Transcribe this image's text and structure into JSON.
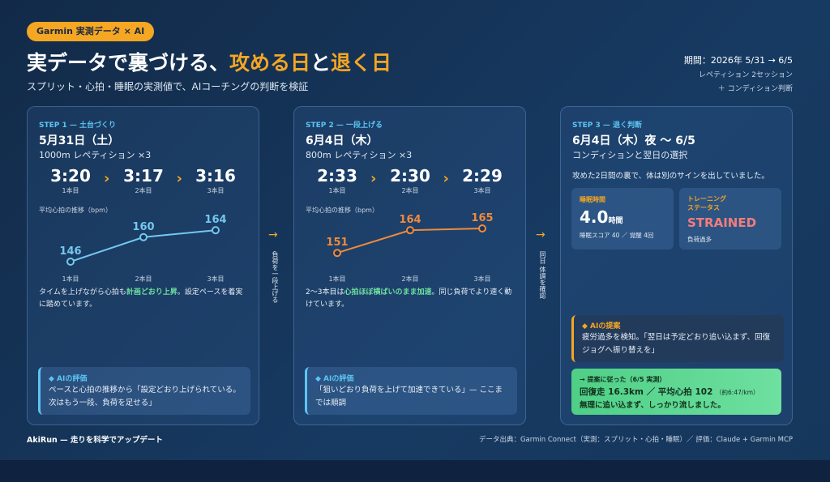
{
  "header": {
    "badge": "Garmin 実測データ × AI",
    "title": [
      "実データで裏づける、",
      "攻める日",
      "と",
      "退く日"
    ],
    "subtitle": "スプリット・心拍・睡眠の実測値で、AIコーチングの判断を検証",
    "period": [
      "期間：2026年 5/31 → 6/5",
      "レペティション 2セッション",
      "＋ コンディション判断"
    ]
  },
  "steps": [
    {
      "label": "STEP 1 — 土台づくり",
      "date": "5月31日（土）",
      "session": "1000m レペティション ×3",
      "times": [
        {
          "time": "3:20",
          "label": "1本目"
        },
        {
          "time": "3:17",
          "label": "2本目"
        },
        {
          "time": "3:16",
          "label": "3本目"
        }
      ],
      "chart": {
        "title": "平均心拍の推移（bpm）",
        "categories": [
          "1本目",
          "2本目",
          "3本目"
        ],
        "values": [
          146,
          160,
          164
        ],
        "color": "#74c7ee"
      },
      "desc": [
        "タイムを上げながら心拍も",
        "計画どおり上昇",
        "。設定ペースを着実に踏めています。"
      ],
      "eval": {
        "title": "◆ AIの評価",
        "text": "ペースと心拍の推移から「設定どおり上げられている。次はもう一段、負荷を足せる」"
      }
    },
    {
      "label": "STEP 2 — 一段上げる",
      "date": "6月4日（木）",
      "session": "800m レペティション ×3",
      "times": [
        {
          "time": "2:33",
          "label": "1本目"
        },
        {
          "time": "2:30",
          "label": "2本目"
        },
        {
          "time": "2:29",
          "label": "3本目"
        }
      ],
      "chart": {
        "title": "平均心拍の推移（bpm）",
        "categories": [
          "1本目",
          "2本目",
          "3本目"
        ],
        "values": [
          151,
          164,
          165
        ],
        "color": "#f08a3c"
      },
      "desc": [
        "2〜3本目は",
        "心拍ほぼ横ばいのまま加速",
        "。同じ負荷でより速く動けています。"
      ],
      "eval": {
        "title": "◆ AIの評価",
        "text": "「狙いどおり負荷を上げて加速できている」— ここまでは順調"
      }
    },
    {
      "label": "STEP 3 — 退く判断",
      "date": "6月4日（木）夜 〜 6/5",
      "session": "コンディションと翌日の選択",
      "intro": "攻めた2日間の裏で、体は別のサインを出していました。",
      "sleep": {
        "title": "睡眠時間",
        "value": "4.0",
        "unit": "時間",
        "note": "睡眠スコア 40 ／ 覚醒 4回"
      },
      "training": {
        "title": [
          "トレーニング",
          "ステータス"
        ],
        "value": "STRAINED",
        "note": "負荷過多"
      },
      "proposal": {
        "title": "◆ AIの提案",
        "text": "疲労過多を検知。「翌日は予定どおり追い込まず、回復ジョグへ振り替えを」"
      },
      "result": {
        "title": "→ 提案に従った（6/5 実測）",
        "main": "回復走 16.3km ／ 平均心拍 102",
        "pace": "（約6:47/km）",
        "text": "無理に追い込まず、しっかり流しました。"
      }
    }
  ],
  "arrows": [
    {
      "symbol": "→",
      "text": "負荷を一段上げる"
    },
    {
      "symbol": "→",
      "text": "同日 体調を確認"
    }
  ],
  "footer": {
    "brand": "AkiRun — 走りを科学でアップデート",
    "source": "データ出典：Garmin Connect（実測：スプリット・心拍・睡眠）／ 評価：Claude + Garmin MCP"
  }
}
